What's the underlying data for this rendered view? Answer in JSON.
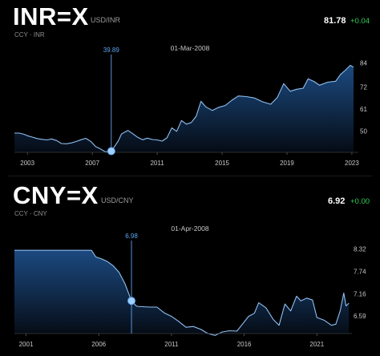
{
  "panels": [
    {
      "ticker": "INR=X",
      "pair": "USD/INR",
      "subtitle": "CCY · INR",
      "price": "81.78",
      "change": "+0.04",
      "selected_date": "01-Mar-2008",
      "colors": {
        "line": "#8fc0f2",
        "fill_top": "#1d4d86",
        "fill_bottom": "#050b14",
        "marker": "#5ea4f0",
        "change": "#30d158"
      },
      "chart_data": {
        "type": "area",
        "x_ticks": [
          "2003",
          "2007",
          "2011",
          "2015",
          "2019",
          "2023"
        ],
        "x_tick_values": [
          2003,
          2007,
          2011,
          2015,
          2019,
          2023
        ],
        "y_ticks": [
          "84",
          "72",
          "61",
          "50"
        ],
        "y_tick_values": [
          84,
          72,
          61,
          50
        ],
        "xlim": [
          2002.2,
          2023.3
        ],
        "ylim": [
          40.5,
          86.5
        ],
        "highlight": {
          "x": 2008.17,
          "y": 39.89,
          "label": "39.89"
        },
        "x": [
          2002.2,
          2002.5,
          2002.8,
          2003.0,
          2003.3,
          2003.6,
          2003.9,
          2004.2,
          2004.5,
          2004.8,
          2005.1,
          2005.4,
          2005.7,
          2006.0,
          2006.3,
          2006.6,
          2006.9,
          2007.2,
          2007.5,
          2007.8,
          2008.17,
          2008.4,
          2008.6,
          2008.8,
          2009.0,
          2009.2,
          2009.5,
          2009.8,
          2010.1,
          2010.4,
          2010.7,
          2011.0,
          2011.3,
          2011.6,
          2011.9,
          2012.2,
          2012.5,
          2012.8,
          2013.1,
          2013.4,
          2013.7,
          2014.0,
          2014.4,
          2014.8,
          2015.2,
          2015.6,
          2016.0,
          2016.5,
          2017.0,
          2017.5,
          2018.0,
          2018.4,
          2018.8,
          2019.2,
          2019.6,
          2020.0,
          2020.3,
          2020.7,
          2021.0,
          2021.5,
          2022.0,
          2022.3,
          2022.6,
          2022.9,
          2023.1
        ],
        "y": [
          48.9,
          48.9,
          48.3,
          47.6,
          46.9,
          46.2,
          45.8,
          45.5,
          46.0,
          45.2,
          43.7,
          43.6,
          44.0,
          44.7,
          45.6,
          46.3,
          44.8,
          42.2,
          41.0,
          39.6,
          39.89,
          42.6,
          45.0,
          48.5,
          49.4,
          50.2,
          48.6,
          46.8,
          45.6,
          46.4,
          45.7,
          45.5,
          44.9,
          46.5,
          51.5,
          49.8,
          55.2,
          53.4,
          54.2,
          57.3,
          64.8,
          62.0,
          60.2,
          61.8,
          62.7,
          65.3,
          67.4,
          67.1,
          66.4,
          64.5,
          63.3,
          66.6,
          73.6,
          69.8,
          70.8,
          71.3,
          76.0,
          74.5,
          72.8,
          74.3,
          74.8,
          78.2,
          80.3,
          82.7,
          81.8
        ]
      }
    },
    {
      "ticker": "CNY=X",
      "pair": "USD/CNY",
      "subtitle": "CCY · CNY",
      "price": "6.92",
      "change": "+0.00",
      "selected_date": "01-Apr-2008",
      "colors": {
        "line": "#8fc0f2",
        "fill_top": "#1d4d86",
        "fill_bottom": "#050b14",
        "marker": "#5ea4f0",
        "change": "#30d158"
      },
      "chart_data": {
        "type": "area",
        "x_ticks": [
          "2001",
          "2006",
          "2011",
          "2016",
          "2021"
        ],
        "x_tick_values": [
          2001,
          2006,
          2011,
          2016,
          2021
        ],
        "y_ticks": [
          "8.32",
          "7.74",
          "7.16",
          "6.59"
        ],
        "y_tick_values": [
          8.32,
          7.74,
          7.16,
          6.59
        ],
        "xlim": [
          2000.2,
          2023.3
        ],
        "ylim": [
          6.2,
          8.45
        ],
        "highlight": {
          "x": 2008.25,
          "y": 6.98,
          "label": "6.98"
        },
        "x": [
          2000.2,
          2002.0,
          2004.0,
          2005.5,
          2005.8,
          2006.2,
          2006.6,
          2007.0,
          2007.4,
          2007.8,
          2008.25,
          2008.6,
          2009.0,
          2009.5,
          2010.0,
          2010.5,
          2011.0,
          2011.5,
          2012.0,
          2012.5,
          2013.0,
          2013.5,
          2014.0,
          2014.5,
          2015.0,
          2015.5,
          2015.9,
          2016.3,
          2016.7,
          2017.0,
          2017.5,
          2018.0,
          2018.4,
          2018.8,
          2019.2,
          2019.6,
          2019.9,
          2020.3,
          2020.7,
          2021.0,
          2021.5,
          2022.0,
          2022.3,
          2022.6,
          2022.85,
          2023.0,
          2023.2
        ],
        "y": [
          8.28,
          8.28,
          8.28,
          8.28,
          8.11,
          8.06,
          7.99,
          7.88,
          7.71,
          7.42,
          6.98,
          6.84,
          6.83,
          6.82,
          6.82,
          6.67,
          6.58,
          6.45,
          6.3,
          6.32,
          6.25,
          6.14,
          6.09,
          6.18,
          6.21,
          6.2,
          6.39,
          6.58,
          6.66,
          6.93,
          6.8,
          6.5,
          6.35,
          6.9,
          6.72,
          7.1,
          6.98,
          7.05,
          7.0,
          6.55,
          6.48,
          6.35,
          6.38,
          6.72,
          7.18,
          6.85,
          6.92
        ]
      }
    }
  ]
}
